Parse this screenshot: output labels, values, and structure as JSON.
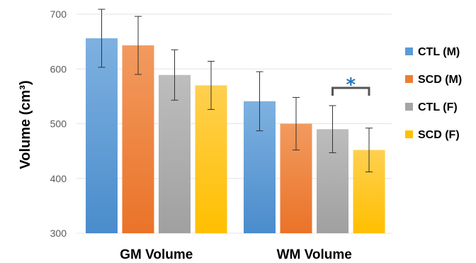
{
  "chart_data": {
    "type": "bar",
    "categories": [
      "GM Volume",
      "WM Volume"
    ],
    "ylabel": "Volume (cm³)",
    "ylim": [
      300,
      700
    ],
    "yticks": [
      300,
      400,
      500,
      600,
      700
    ],
    "grid": true,
    "legend_position": "right",
    "series": [
      {
        "name": "CTL (M)",
        "color": "#5b9bd5",
        "values": [
          656,
          541
        ],
        "error": [
          53,
          54
        ]
      },
      {
        "name": "SCD (M)",
        "color": "#ed7d31",
        "values": [
          643,
          500
        ],
        "error": [
          53,
          48
        ]
      },
      {
        "name": "CTL (F)",
        "color": "#a5a5a5",
        "values": [
          589,
          490
        ],
        "error": [
          46,
          43
        ]
      },
      {
        "name": "SCD (F)",
        "color": "#ffc000",
        "values": [
          570,
          452
        ],
        "error": [
          44,
          40
        ]
      }
    ],
    "annotation": {
      "text": "*",
      "between_series": [
        "CTL (F)",
        "SCD (F)"
      ],
      "category": "WM Volume"
    }
  }
}
